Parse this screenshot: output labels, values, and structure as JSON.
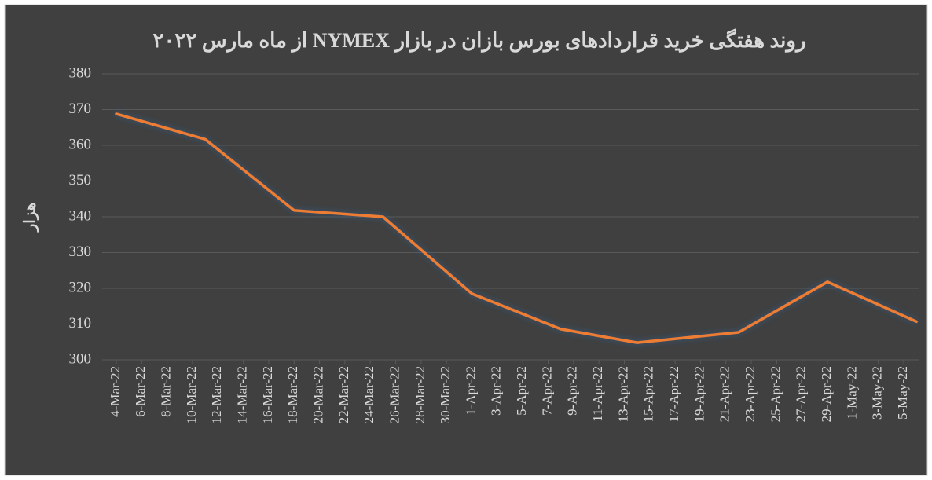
{
  "chart_data": {
    "type": "line",
    "title": "روند هفتگی خرید قراردادهای بورس بازان در بازار NYMEX از ماه مارس ۲۰۲۲",
    "y_label": "هزار",
    "x": [
      "4-Mar-22",
      "11-Mar-22",
      "18-Mar-22",
      "25-Mar-22",
      "1-Apr-22",
      "8-Apr-22",
      "14-Apr-22",
      "22-Apr-22",
      "29-Apr-22",
      "6-May-22"
    ],
    "series": [
      {
        "name": "هزار",
        "color": "#ed7d31",
        "values": [
          368.8,
          361.7,
          341.8,
          340,
          318.5,
          308.6,
          304.8,
          307.7,
          321.8,
          310.7
        ]
      }
    ],
    "xticks": [
      "4-Mar-22",
      "6-Mar-22",
      "8-Mar-22",
      "10-Mar-22",
      "12-Mar-22",
      "14-Mar-22",
      "16-Mar-22",
      "18-Mar-22",
      "20-Mar-22",
      "22-Mar-22",
      "24-Mar-22",
      "26-Mar-22",
      "28-Mar-22",
      "30-Mar-22",
      "1-Apr-22",
      "3-Apr-22",
      "5-Apr-22",
      "7-Apr-22",
      "9-Apr-22",
      "11-Apr-22",
      "13-Apr-22",
      "15-Apr-22",
      "17-Apr-22",
      "19-Apr-22",
      "21-Apr-22",
      "23-Apr-22",
      "25-Apr-22",
      "27-Apr-22",
      "29-Apr-22",
      "1-May-22",
      "3-May-22",
      "5-May-22"
    ],
    "ylim": [
      300,
      380
    ],
    "yticks": [
      300,
      310,
      320,
      330,
      340,
      350,
      360,
      370,
      380
    ],
    "grid": true
  }
}
